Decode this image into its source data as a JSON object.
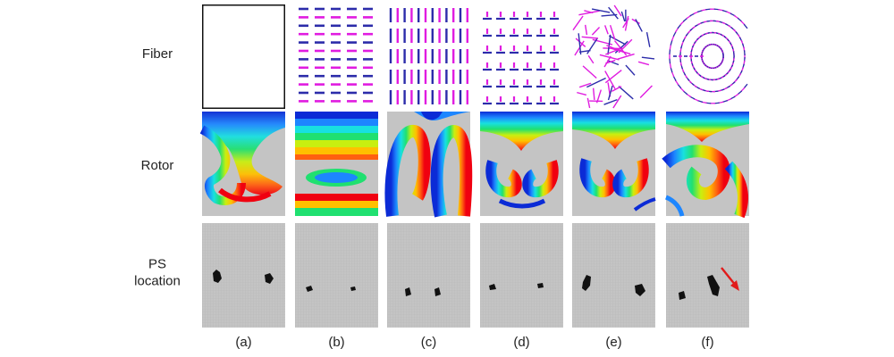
{
  "rows": [
    {
      "key": "fiber",
      "label_lines": [
        "Fiber"
      ]
    },
    {
      "key": "rotor",
      "label_lines": [
        "Rotor"
      ]
    },
    {
      "key": "ps",
      "label_lines": [
        "PS",
        "location"
      ]
    }
  ],
  "columns": [
    {
      "label": "(a)",
      "fiber_pattern": "none"
    },
    {
      "label": "(b)",
      "fiber_pattern": "horizontal-dashes"
    },
    {
      "label": "(c)",
      "fiber_pattern": "vertical-dashes"
    },
    {
      "label": "(d)",
      "fiber_pattern": "crosshatch"
    },
    {
      "label": "(e)",
      "fiber_pattern": "random"
    },
    {
      "label": "(f)",
      "fiber_pattern": "radial"
    }
  ],
  "colors": {
    "fiber_primary": "#e01ce0",
    "fiber_secondary": "#2c2caa",
    "background_gray": "#c4c4c4",
    "ps_marker": "#111111",
    "arrow": "#e11b1b",
    "rainbow": [
      "#0b2bd6",
      "#1d86ff",
      "#18e0e0",
      "#20e070",
      "#c8ef10",
      "#ffc000",
      "#ff6010",
      "#f00010"
    ]
  },
  "arrow_icon": "red-arrow-icon"
}
